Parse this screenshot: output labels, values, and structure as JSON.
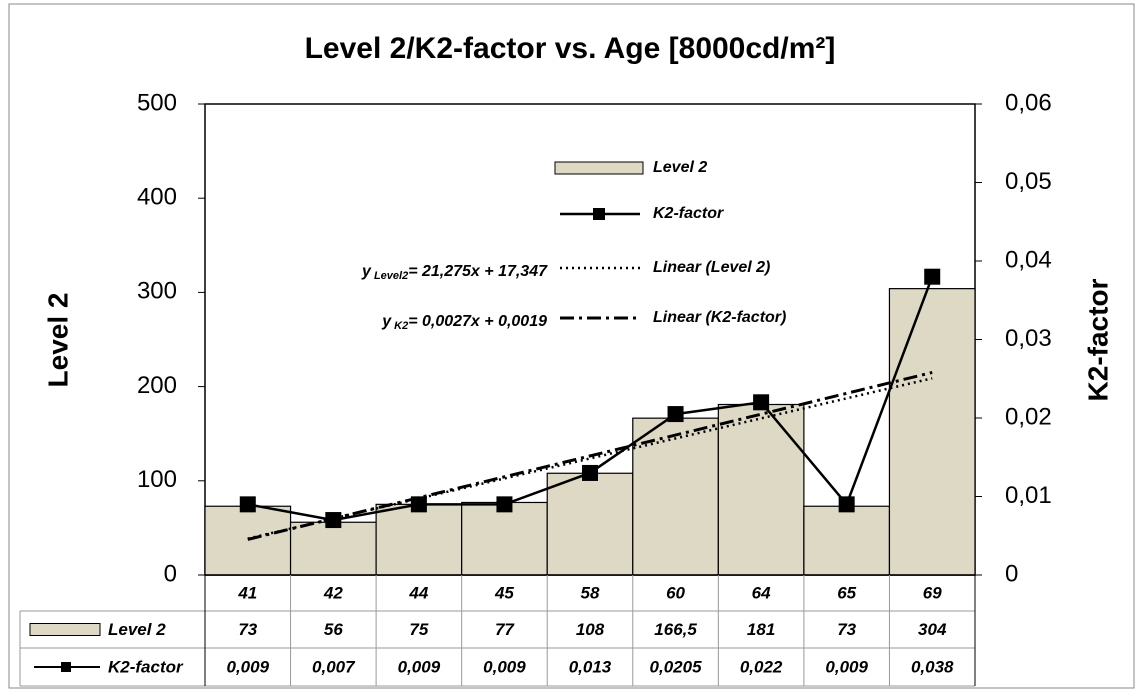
{
  "chart_data": {
    "type": "bar",
    "title": "Level 2/K2-factor vs. Age [8000cd/m²]",
    "y_label": "Level 2",
    "y2_label": "K2-factor",
    "categories": [
      "41",
      "42",
      "44",
      "45",
      "58",
      "60",
      "64",
      "65",
      "69"
    ],
    "series": [
      {
        "name": "Level 2",
        "type": "bar",
        "color": "#ddd9c4",
        "values": [
          73,
          56,
          75,
          77,
          108,
          166.5,
          181,
          73,
          304
        ],
        "value_labels": [
          "73",
          "56",
          "75",
          "77",
          "108",
          "166,5",
          "181",
          "73",
          "304"
        ]
      },
      {
        "name": "K2-factor",
        "type": "line",
        "axis": "y2",
        "color": "#000000",
        "values": [
          0.009,
          0.007,
          0.009,
          0.009,
          0.013,
          0.0205,
          0.022,
          0.009,
          0.038
        ],
        "value_labels": [
          "0,009",
          "0,007",
          "0,009",
          "0,009",
          "0,013",
          "0,0205",
          "0,022",
          "0,009",
          "0,038"
        ]
      }
    ],
    "trendlines": [
      {
        "name": "Linear (Level 2)",
        "series": 0,
        "eq_y": "y",
        "eq_sub": "Level2",
        "eq_rhs": "= 21,275x + 17,347",
        "dash": "2,4"
      },
      {
        "name": "Linear (K2-factor)",
        "series": 1,
        "eq_y": "y",
        "eq_sub": "K2",
        "eq_rhs": "= 0,0027x + 0,0019",
        "dash": "14,5,3,5"
      }
    ],
    "ylim": [
      0,
      500
    ],
    "yticks": [
      0,
      100,
      200,
      300,
      400,
      500
    ],
    "y2lim": [
      0,
      0.06
    ],
    "y2ticks": [
      0,
      {
        "value": 0.01,
        "label": "0,01"
      },
      {
        "value": 0.02,
        "label": "0,02"
      },
      {
        "value": 0.03,
        "label": "0,03"
      },
      {
        "value": 0.04,
        "label": "0,04"
      },
      {
        "value": 0.05,
        "label": "0,05"
      },
      {
        "value": 0.06,
        "label": "0,06"
      }
    ]
  }
}
